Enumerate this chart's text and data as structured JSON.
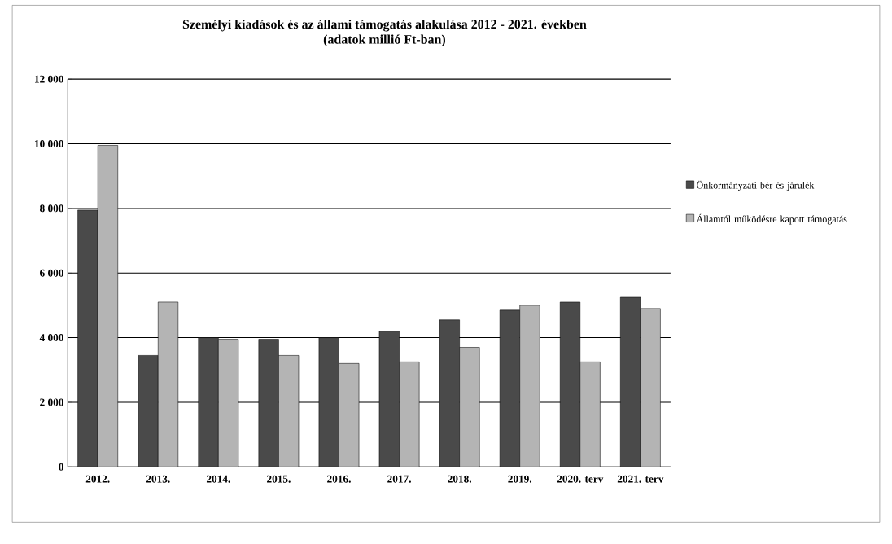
{
  "chart_data": {
    "type": "bar",
    "title": "Személyi kiadások és az állami támogatás alakulása 2012 - 2021. években",
    "subtitle": "(adatok millió Ft-ban)",
    "categories": [
      "2012.",
      "2013.",
      "2014.",
      "2015.",
      "2016.",
      "2017.",
      "2018.",
      "2019.",
      "2020. terv",
      "2021. terv"
    ],
    "series": [
      {
        "name": "Önkormányzati bér és járulék",
        "color": "#4a4a4a",
        "values": [
          7950,
          3450,
          4000,
          3950,
          4000,
          4200,
          4550,
          4850,
          5100,
          5250
        ]
      },
      {
        "name": "Államtól működésre kapott támogatás",
        "color": "#b4b4b4",
        "values": [
          9950,
          5100,
          3950,
          3450,
          3200,
          3250,
          3700,
          5000,
          3250,
          4900
        ]
      }
    ],
    "ylim": [
      0,
      12000
    ],
    "yticks": [
      {
        "value": 0,
        "label": "0"
      },
      {
        "value": 2000,
        "label": "2 000"
      },
      {
        "value": 4000,
        "label": "4 000"
      },
      {
        "value": 6000,
        "label": "6 000"
      },
      {
        "value": 8000,
        "label": "8 000"
      },
      {
        "value": 10000,
        "label": "10 000"
      },
      {
        "value": 12000,
        "label": "12 000"
      }
    ],
    "grid": "y",
    "legend": "right"
  }
}
